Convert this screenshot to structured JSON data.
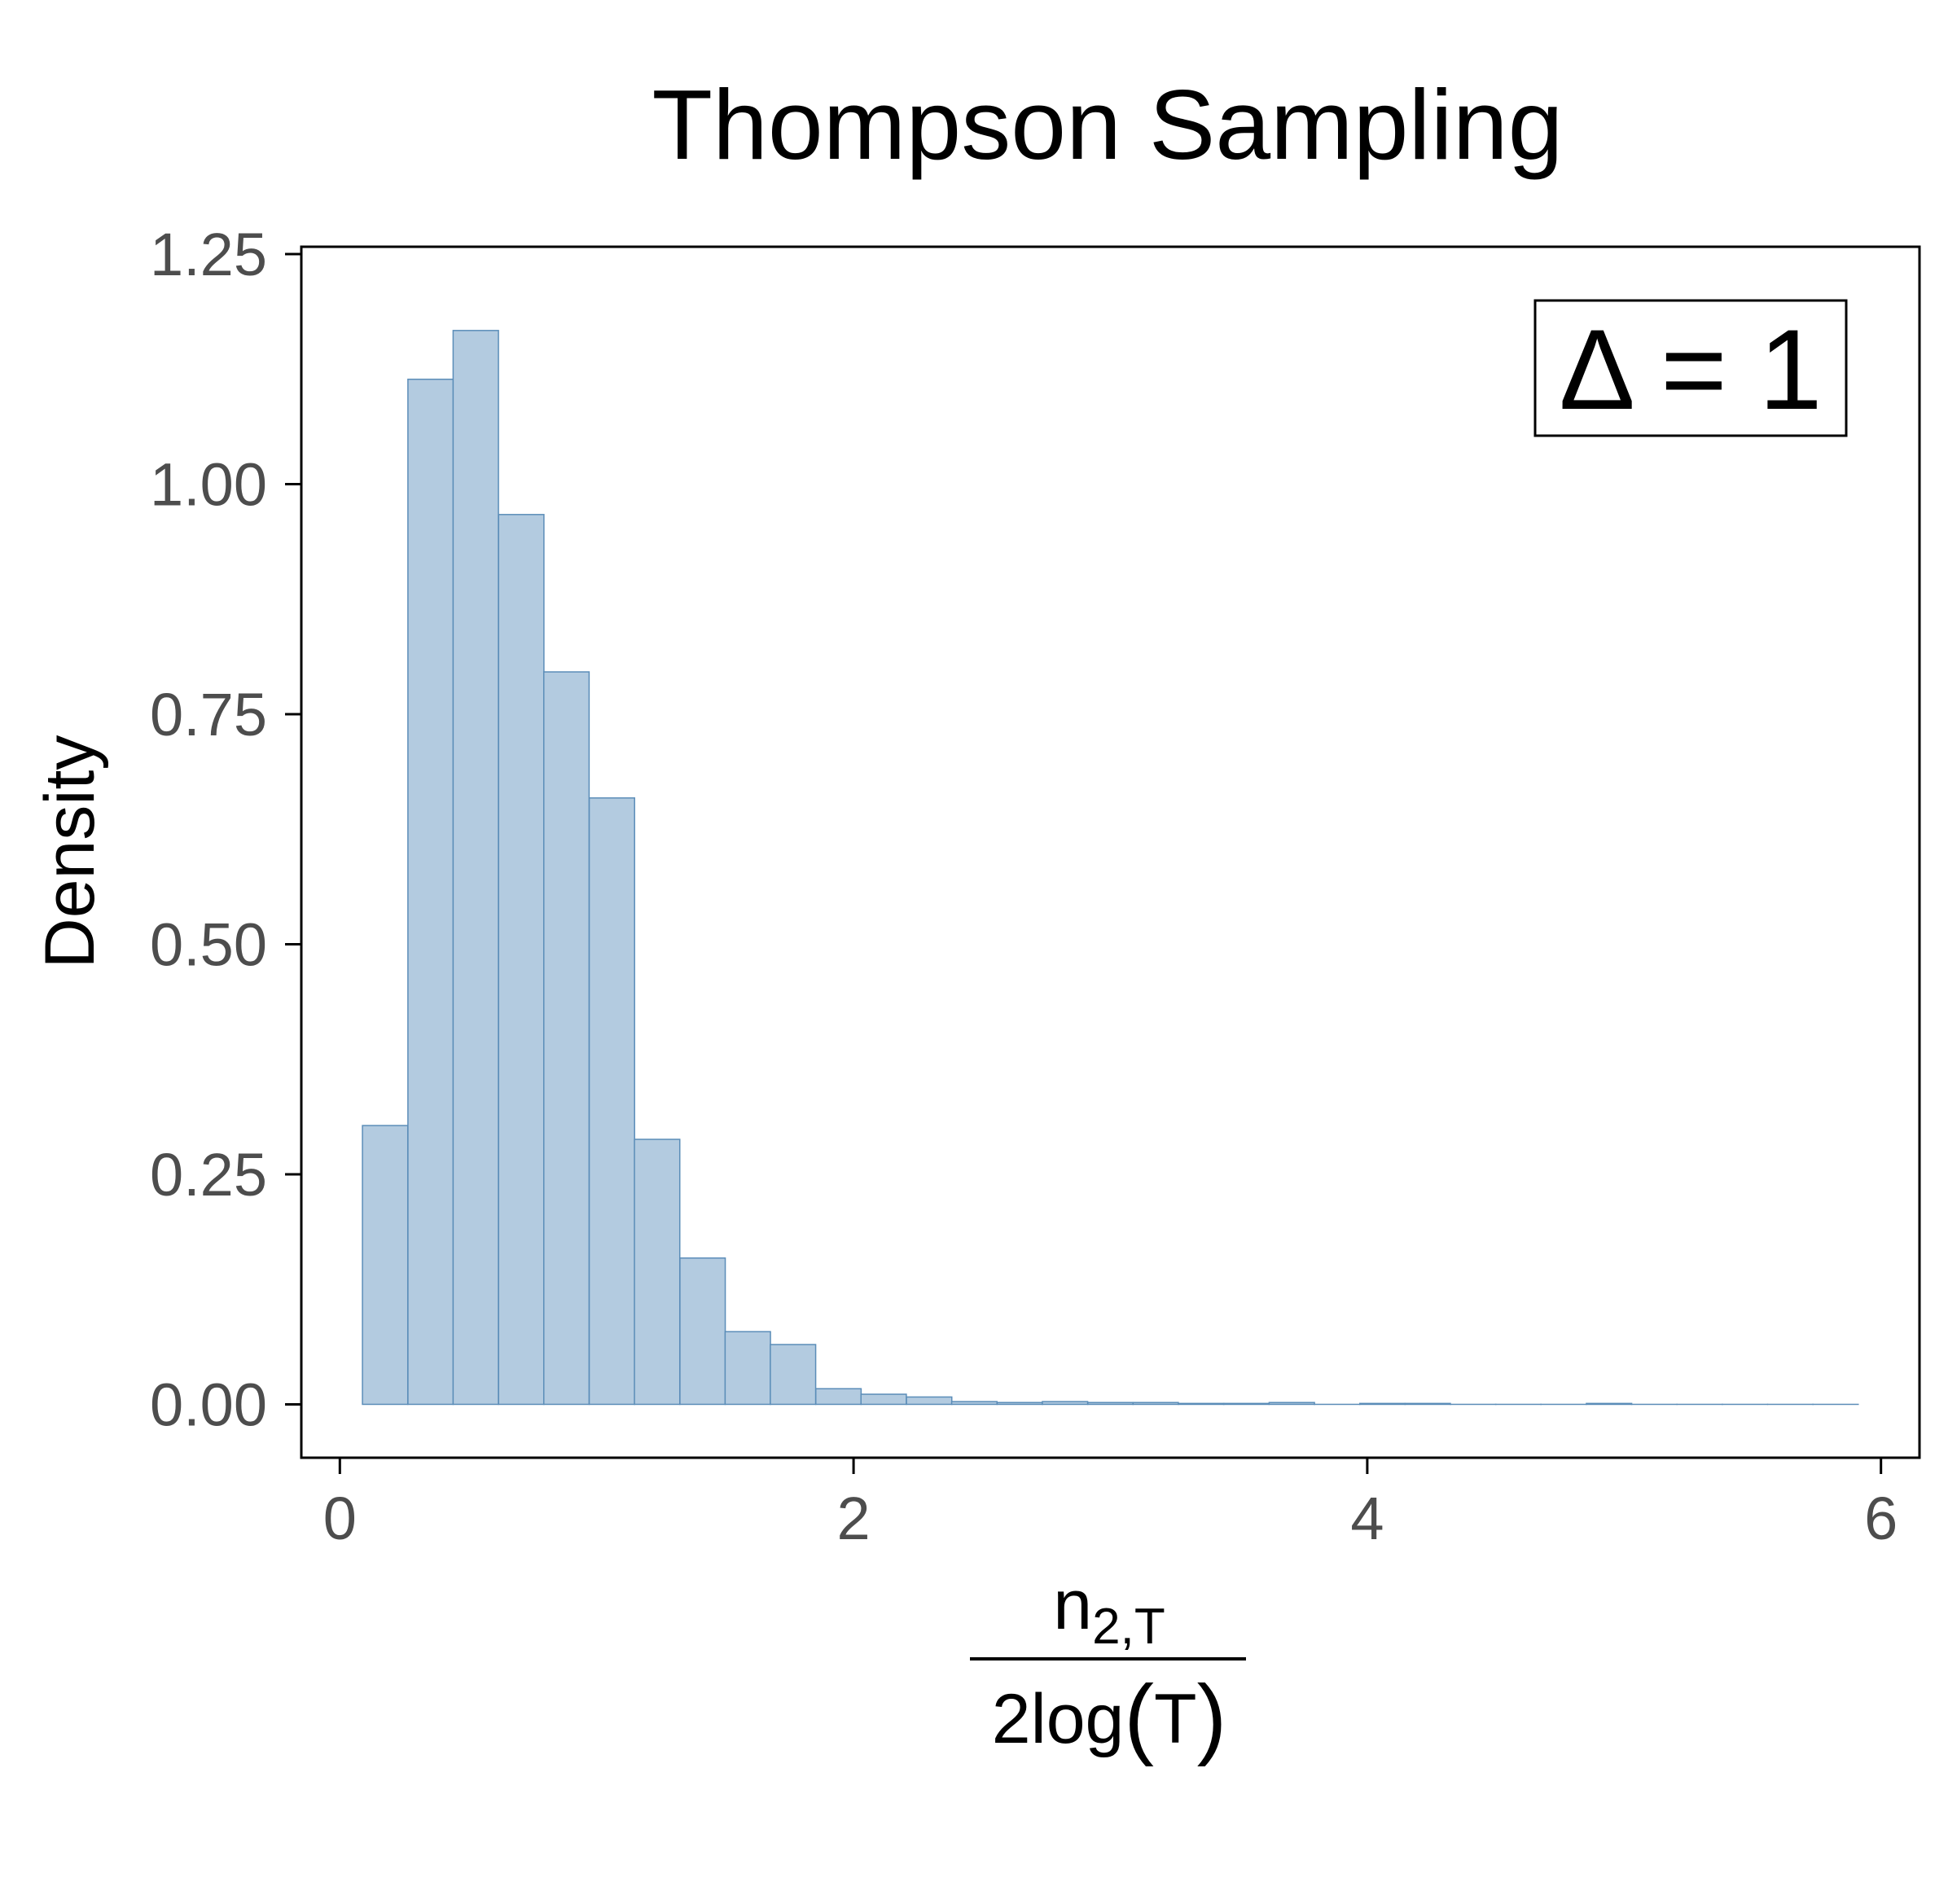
{
  "chart_data": {
    "type": "bar",
    "title": "Thompson Sampling",
    "ylabel": "Density",
    "xlabel": {
      "numerator_base": "n",
      "numerator_sub": "2,T",
      "denominator_prefix": "2log",
      "denominator_arg": "T"
    },
    "annotation": "Δ = 1",
    "xlim": [
      -0.15,
      6.15
    ],
    "ylim": [
      -0.058,
      1.258
    ],
    "x_ticks": [
      0,
      2,
      4,
      6
    ],
    "x_tick_labels": [
      "0",
      "2",
      "4",
      "6"
    ],
    "y_ticks": [
      0,
      0.25,
      0.5,
      0.75,
      1.0,
      1.25
    ],
    "y_tick_labels": [
      "0.00",
      "0.25",
      "0.50",
      "0.75",
      "1.00",
      "1.25"
    ],
    "grid": false,
    "bin_width": 0.1765,
    "bins": [
      {
        "x0": 0.088,
        "density": 0.303
      },
      {
        "x0": 0.265,
        "density": 1.114
      },
      {
        "x0": 0.441,
        "density": 1.167
      },
      {
        "x0": 0.618,
        "density": 0.967
      },
      {
        "x0": 0.794,
        "density": 0.796
      },
      {
        "x0": 0.971,
        "density": 0.659
      },
      {
        "x0": 1.147,
        "density": 0.288
      },
      {
        "x0": 1.324,
        "density": 0.159
      },
      {
        "x0": 1.5,
        "density": 0.079
      },
      {
        "x0": 1.676,
        "density": 0.065
      },
      {
        "x0": 1.853,
        "density": 0.017
      },
      {
        "x0": 2.029,
        "density": 0.011
      },
      {
        "x0": 2.206,
        "density": 0.008
      },
      {
        "x0": 2.382,
        "density": 0.003
      },
      {
        "x0": 2.559,
        "density": 0.002
      },
      {
        "x0": 2.735,
        "density": 0.003
      },
      {
        "x0": 2.912,
        "density": 0.002
      },
      {
        "x0": 3.088,
        "density": 0.002
      },
      {
        "x0": 3.265,
        "density": 0.001
      },
      {
        "x0": 3.441,
        "density": 0.001
      },
      {
        "x0": 3.618,
        "density": 0.002
      },
      {
        "x0": 3.794,
        "density": 0.0
      },
      {
        "x0": 3.971,
        "density": 0.001
      },
      {
        "x0": 4.147,
        "density": 0.001
      },
      {
        "x0": 4.324,
        "density": 0.0
      },
      {
        "x0": 4.5,
        "density": 0.0
      },
      {
        "x0": 4.676,
        "density": 0.0
      },
      {
        "x0": 4.853,
        "density": 0.001
      },
      {
        "x0": 5.029,
        "density": 0.0
      },
      {
        "x0": 5.206,
        "density": 0.0
      },
      {
        "x0": 5.382,
        "density": 0.0
      },
      {
        "x0": 5.559,
        "density": 0.0
      },
      {
        "x0": 5.735,
        "density": 0.0
      }
    ],
    "colors": {
      "bar_fill": "#b3cbe0",
      "bar_stroke": "#5b8db8",
      "axis": "#000000",
      "tick_label": "#4d4d4d"
    }
  }
}
